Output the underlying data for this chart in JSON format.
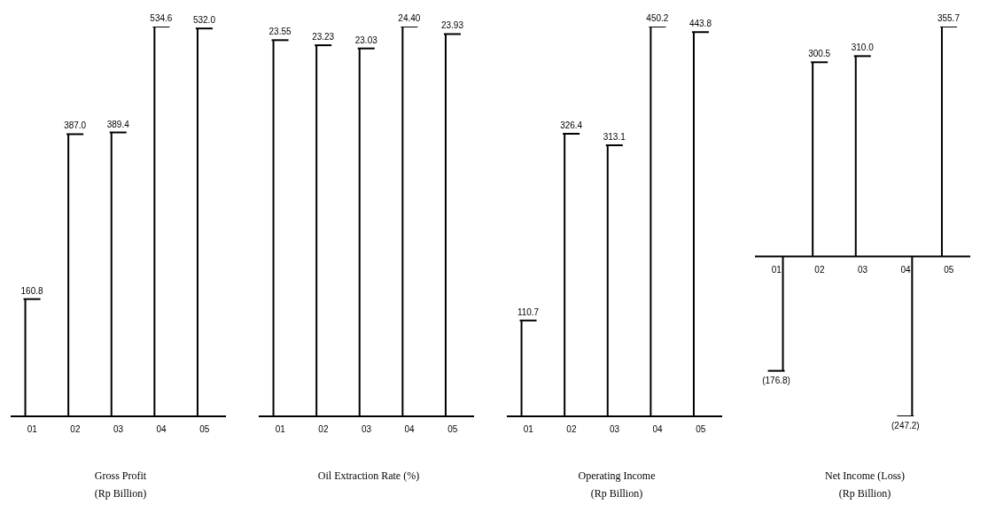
{
  "chart_data": [
    {
      "type": "bar",
      "title": "Gross Profit\n(Rp Billion)",
      "categories": [
        "01",
        "02",
        "03",
        "04",
        "05"
      ],
      "values": [
        160.8,
        387.0,
        389.4,
        534.6,
        532.0
      ],
      "value_labels": [
        "160.8",
        "387.0",
        "389.4",
        "534.6",
        "532.0"
      ],
      "color": "#000000",
      "tick_labels": "x"
    },
    {
      "type": "bar",
      "title": "Oil Extraction Rate (%)",
      "categories": [
        "01",
        "02",
        "03",
        "04",
        "05"
      ],
      "values": [
        23.55,
        23.23,
        23.03,
        24.4,
        23.93
      ],
      "value_labels": [
        "23.55",
        "23.23",
        "23.03",
        "24.40",
        "23.93"
      ],
      "color": "#000000",
      "tick_labels": "x"
    },
    {
      "type": "bar",
      "title": "Operating Income\n(Rp Billion)",
      "categories": [
        "01",
        "02",
        "03",
        "04",
        "05"
      ],
      "values": [
        110.7,
        326.4,
        313.1,
        450.2,
        443.8
      ],
      "value_labels": [
        "110.7",
        "326.4",
        "313.1",
        "450.2",
        "443.8"
      ],
      "color": "#000000",
      "tick_labels": "x"
    },
    {
      "type": "bar",
      "title": "Net Income (Loss)\n(Rp Billion)",
      "categories": [
        "01",
        "02",
        "03",
        "04",
        "05"
      ],
      "values": [
        -176.8,
        300.5,
        310.0,
        -247.2,
        355.7
      ],
      "value_labels": [
        "(176.8)",
        "300.5",
        "310.0",
        "(247.2)",
        "355.7"
      ],
      "color": "#000000",
      "tick_labels": "x"
    }
  ]
}
